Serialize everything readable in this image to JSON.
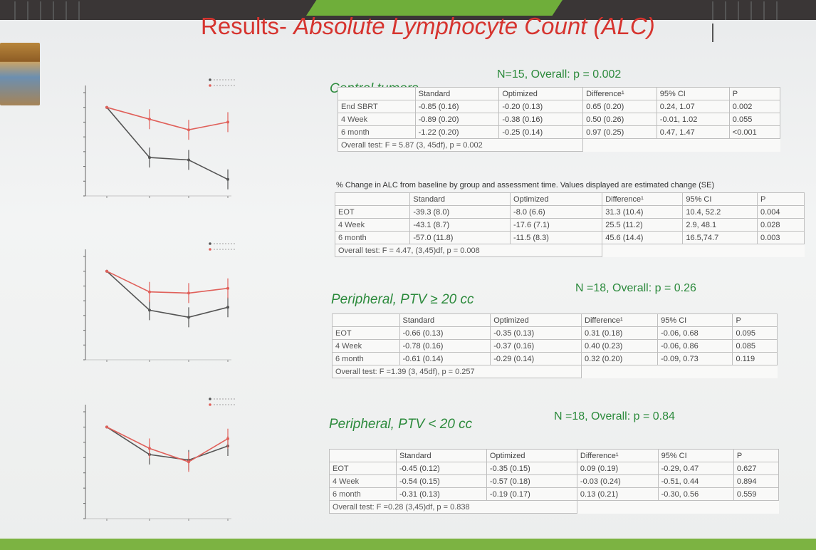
{
  "slide": {
    "title_prefix": "Results- ",
    "title_main": "Absolute Lymphocyte Count (ALC)",
    "sections": [
      {
        "heading": "Central tumors",
        "n_label": "N=15, Overall: p = 0.002",
        "columns": [
          "",
          "Standard",
          "Optimized",
          "Difference¹",
          "95% CI",
          "P"
        ],
        "rows": [
          [
            "End SBRT",
            "-0.85 (0.16)",
            "-0.20 (0.13)",
            "0.65 (0.20)",
            "0.24, 1.07",
            "0.002"
          ],
          [
            "4 Week",
            "-0.89 (0.20)",
            "-0.38 (0.16)",
            "0.50 (0.26)",
            "-0.01, 1.02",
            "0.055"
          ],
          [
            "6 month",
            "-1.22 (0.20)",
            "-0.25 (0.14)",
            "0.97 (0.25)",
            "0.47, 1.47",
            "<0.001"
          ]
        ],
        "overall": "Overall test: F = 5.87 (3, 45df), p = 0.002"
      },
      {
        "heading": "% Change in ALC from baseline by group and assessment time. Values displayed are estimated change (SE)",
        "columns": [
          "",
          "Standard",
          "Optimized",
          "Difference¹",
          "95% CI",
          "P"
        ],
        "rows": [
          [
            "EOT",
            "-39.3 (8.0)",
            "-8.0 (6.6)",
            "31.3 (10.4)",
            "10.4, 52.2",
            "0.004"
          ],
          [
            "4 Week",
            "-43.1 (8.7)",
            "-17.6 (7.1)",
            "25.5 (11.2)",
            "2.9, 48.1",
            "0.028"
          ],
          [
            "6 month",
            "-57.0 (11.8)",
            "-11.5 (8.3)",
            "45.6 (14.4)",
            "16.5,74.7",
            "0.003"
          ]
        ],
        "overall": "Overall test: F = 4.47, (3,45)df, p = 0.008"
      },
      {
        "heading": "Peripheral, PTV ≥ 20 cc",
        "n_label": "N =18, Overall: p = 0.26",
        "columns": [
          "",
          "Standard",
          "Optimized",
          "Difference¹",
          "95% CI",
          "P"
        ],
        "rows": [
          [
            "EOT",
            "-0.66 (0.13)",
            "-0.35 (0.13)",
            "0.31 (0.18)",
            "-0.06, 0.68",
            "0.095"
          ],
          [
            "4 Week",
            "-0.78 (0.16)",
            "-0.37 (0.16)",
            "0.40 (0.23)",
            "-0.06, 0.86",
            "0.085"
          ],
          [
            "6 month",
            "-0.61 (0.14)",
            "-0.29 (0.14)",
            "0.32 (0.20)",
            "-0.09, 0.73",
            "0.119"
          ]
        ],
        "overall": "Overall test: F =1.39 (3, 45df), p = 0.257"
      },
      {
        "heading": "Peripheral, PTV < 20 cc",
        "n_label": "N =18, Overall: p = 0.84",
        "columns": [
          "",
          "Standard",
          "Optimized",
          "Difference¹",
          "95% CI",
          "P"
        ],
        "rows": [
          [
            "EOT",
            "-0.45 (0.12)",
            "-0.35 (0.15)",
            "0.09 (0.19)",
            "-0.29, 0.47",
            "0.627"
          ],
          [
            "4 Week",
            "-0.54 (0.15)",
            "-0.57 (0.18)",
            "-0.03 (0.24)",
            "-0.51, 0.44",
            "0.894"
          ],
          [
            "6 month",
            "-0.31 (0.13)",
            "-0.19 (0.17)",
            "0.13 (0.21)",
            "-0.30, 0.56",
            "0.559"
          ]
        ],
        "overall": "Overall test: F =0.28 (3,45)df, p = 0.838"
      }
    ]
  },
  "colors": {
    "title": "#d6342f",
    "heading": "#2c8a3c",
    "standard_series": "#555555",
    "optimized_series": "#e0605a",
    "accent_green": "#7cb342"
  },
  "chart_data": [
    {
      "type": "line",
      "series": [
        {
          "values": [
            0,
            -0.85,
            -0.89,
            -1.22
          ]
        },
        {
          "values": [
            0,
            -0.2,
            -0.38,
            -0.25
          ]
        }
      ]
    },
    {
      "type": "line",
      "series": [
        {
          "values": [
            0,
            -0.66,
            -0.78,
            -0.61
          ]
        },
        {
          "values": [
            0,
            -0.35,
            -0.37,
            -0.29
          ]
        }
      ]
    },
    {
      "type": "line",
      "series": [
        {
          "values": [
            0,
            -0.45,
            -0.54,
            -0.31
          ]
        },
        {
          "values": [
            0,
            -0.35,
            -0.57,
            -0.19
          ]
        }
      ]
    }
  ]
}
